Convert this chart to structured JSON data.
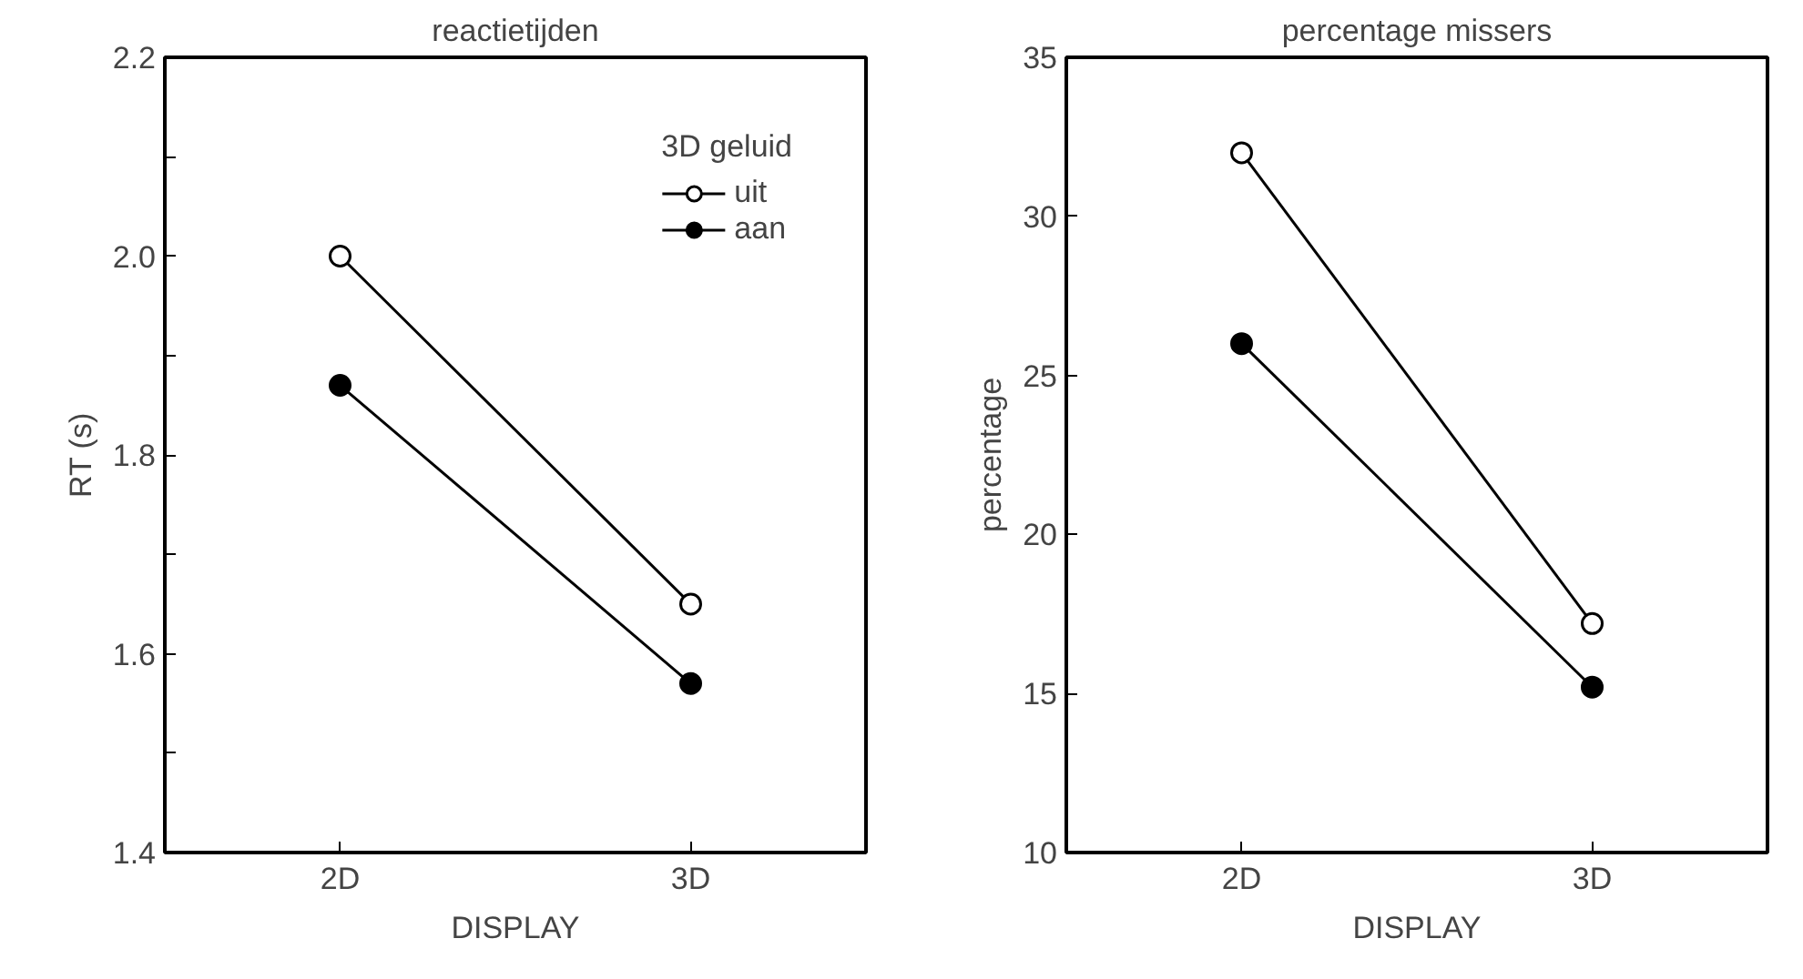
{
  "chart_data": [
    {
      "type": "line",
      "title": "reactietijden",
      "xlabel": "DISPLAY",
      "ylabel": "RT (s)",
      "categories": [
        "2D",
        "3D"
      ],
      "ylim": [
        1.4,
        2.2
      ],
      "yticks": [
        1.4,
        {
          "value": 1.5,
          "label": null
        },
        1.6,
        {
          "value": 1.7,
          "label": null
        },
        1.8,
        {
          "value": 1.9,
          "label": null
        },
        {
          "value": 2.0,
          "label": "2.0"
        },
        {
          "value": 2.1,
          "label": null
        },
        2.2
      ],
      "legend": "top right",
      "legend_title": "3D geluid",
      "marker": "circle",
      "grid": false,
      "series": [
        {
          "name": "uit",
          "color": "#ffffff",
          "values": [
            2.0,
            1.65
          ]
        },
        {
          "name": "aan",
          "color": "#000000",
          "values": [
            1.87,
            1.57
          ]
        }
      ]
    },
    {
      "type": "line",
      "title": "percentage missers",
      "xlabel": "DISPLAY",
      "ylabel": "percentage",
      "categories": [
        "2D",
        "3D"
      ],
      "ylim": [
        10,
        35
      ],
      "yticks": [
        10,
        15,
        20,
        25,
        30,
        35
      ],
      "legend": false,
      "marker": "circle",
      "grid": false,
      "series": [
        {
          "color": "#ffffff",
          "values": [
            32,
            17.2
          ]
        },
        {
          "color": "#000000",
          "values": [
            26,
            15.2
          ]
        }
      ]
    }
  ]
}
